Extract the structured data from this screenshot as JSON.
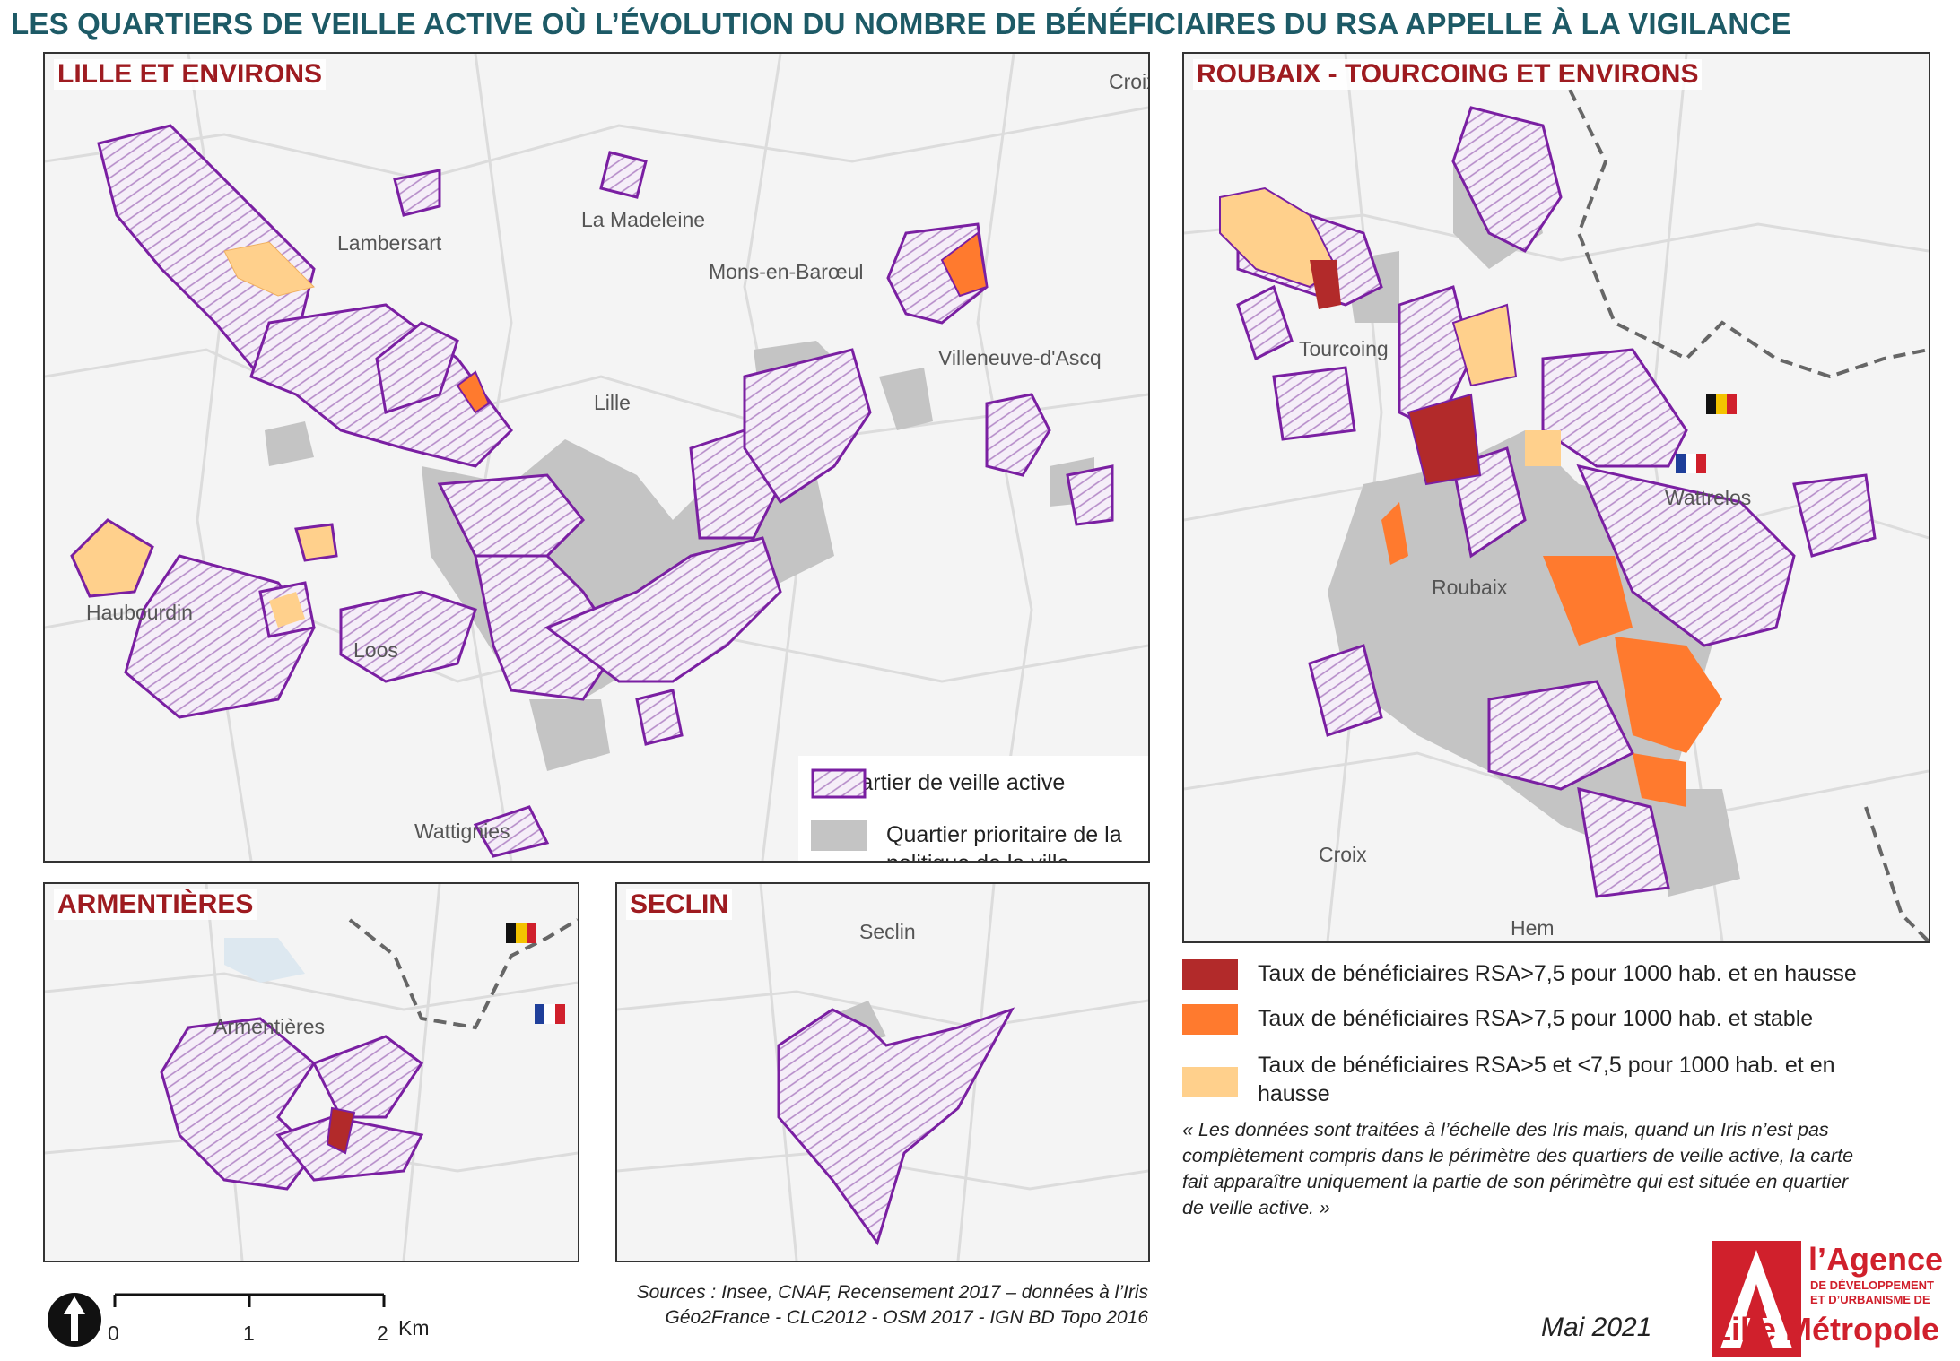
{
  "title": "LES QUARTIERS DE VEILLE ACTIVE OÙ L’ÉVOLUTION DU NOMBRE DE BÉNÉFICIAIRES DU RSA APPELLE À LA VIGILANCE",
  "colors": {
    "title": "#1d5a66",
    "panel_title": "#9e1b20",
    "veille_outline": "#7a1fa2",
    "prioritaire": "#c4c4c4",
    "hausse_75": "#b22a2a",
    "stable_75": "#ff7a2e",
    "hausse_5": "#ffd08c",
    "logo": "#d0202c"
  },
  "panels": {
    "lille": {
      "title": "LILLE ET ENVIRONS",
      "places": [
        "Lambersart",
        "La Madeleine",
        "Mons-en-Barœul",
        "Villeneuve-d'Ascq",
        "Lille",
        "Haubourdin",
        "Loos",
        "Wattignies",
        "Croix"
      ]
    },
    "roubaix": {
      "title": "ROUBAIX - TOURCOING ET ENVIRONS",
      "places": [
        "Tourcoing",
        "Wattrelos",
        "Roubaix",
        "Croix",
        "Hem"
      ]
    },
    "armentieres": {
      "title": "ARMENTIÈRES",
      "places": [
        "Armentières"
      ]
    },
    "seclin": {
      "title": "SECLIN",
      "places": [
        "Seclin"
      ]
    }
  },
  "legend_map": {
    "veille": "Quartier de veille active",
    "prioritaire": "Quartier prioritaire de la politique de la ville"
  },
  "legend_rsa": [
    {
      "label": "Taux de bénéficiaires RSA>7,5 pour 1000 hab. et en hausse",
      "color": "#b22a2a"
    },
    {
      "label": "Taux de bénéficiaires RSA>7,5 pour 1000 hab. et stable",
      "color": "#ff7a2e"
    },
    {
      "label": "Taux de bénéficiaires RSA>5 et <7,5 pour 1000 hab. et en hausse",
      "color": "#ffd08c"
    }
  ],
  "note": "« Les données sont traitées à l’échelle des Iris mais, quand un Iris n’est pas complètement compris dans le périmètre des quartiers de veille active, la carte fait apparaître uniquement la partie de son périmètre qui est située en quartier de veille active. »",
  "scale": {
    "ticks": [
      "0",
      "1",
      "2"
    ],
    "unit": "Km"
  },
  "sources": {
    "line1": "Sources : Insee, CNAF, Recensement 2017 – données à l’Iris",
    "line2": "Géo2France - CLC2012 -  OSM 2017 - IGN BD Topo 2016"
  },
  "date": "Mai 2021",
  "logo": {
    "line1": "l’Agence",
    "line2": "DE DÉVELOPPEMENT",
    "line3": "ET D’URBANISME DE",
    "line4": "Lille Métropole"
  }
}
